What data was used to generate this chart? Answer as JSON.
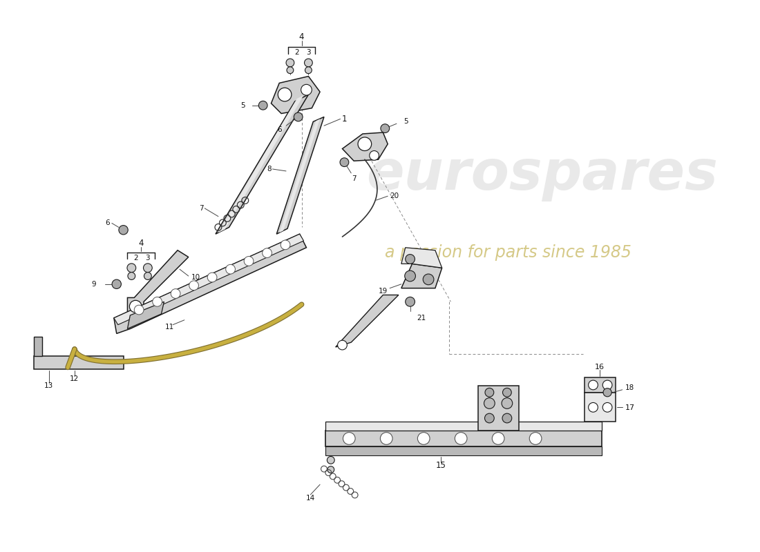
{
  "background_color": "#ffffff",
  "line_color": "#1a1a1a",
  "part_fill_light": "#e8e8e8",
  "part_fill_mid": "#d0d0d0",
  "part_fill_dark": "#b8b8b8",
  "watermark_text": "eurospares",
  "watermark_color": "#d5d5d5",
  "watermark_sub": "a passion for parts since 1985",
  "watermark_sub_color": "#c8b860",
  "label_color": "#111111",
  "dashed_color": "#888888",
  "cable_color": "#c8b040",
  "cable_shadow": "#807030"
}
